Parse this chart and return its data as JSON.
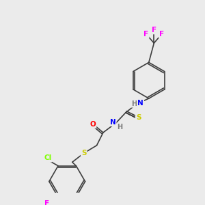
{
  "bg_color": "#ebebeb",
  "bond_color": "#3d3d3d",
  "bond_width": 1.2,
  "atom_colors": {
    "N": "#0000ff",
    "O": "#ff0000",
    "S": "#cccc00",
    "F": "#ff00ff",
    "Cl": "#7fff00",
    "C": "#3d3d3d",
    "H": "#7a7a7a"
  },
  "font_size": 7.5
}
